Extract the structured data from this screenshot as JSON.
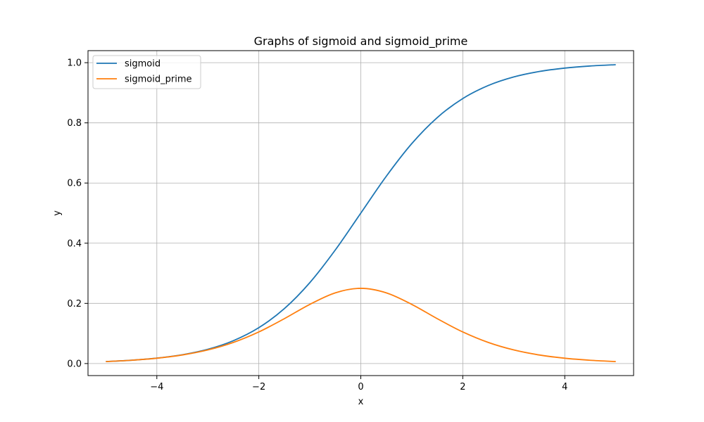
{
  "chart_data": {
    "type": "line",
    "title": "Graphs of sigmoid and sigmoid_prime",
    "xlabel": "x",
    "ylabel": "y",
    "xlim": [
      -5.35,
      5.35
    ],
    "ylim": [
      -0.04,
      1.04
    ],
    "xticks": [
      -4,
      -2,
      0,
      2,
      4
    ],
    "xtick_labels": [
      "−4",
      "−2",
      "0",
      "2",
      "4"
    ],
    "yticks": [
      0.0,
      0.2,
      0.4,
      0.6,
      0.8,
      1.0
    ],
    "ytick_labels": [
      "0.0",
      "0.2",
      "0.4",
      "0.6",
      "0.8",
      "1.0"
    ],
    "grid": true,
    "legend_position": "top-left",
    "x": [
      -5,
      -4.5,
      -4,
      -3.5,
      -3,
      -2.5,
      -2,
      -1.5,
      -1,
      -0.5,
      0,
      0.5,
      1,
      1.5,
      2,
      2.5,
      3,
      3.5,
      4,
      4.5,
      5
    ],
    "series": [
      {
        "name": "sigmoid",
        "color": "#1f77b4",
        "values": [
          0.0067,
          0.011,
          0.018,
          0.0293,
          0.0474,
          0.0759,
          0.1192,
          0.1824,
          0.2689,
          0.3775,
          0.5,
          0.6225,
          0.7311,
          0.8176,
          0.8808,
          0.9241,
          0.9526,
          0.9707,
          0.982,
          0.989,
          0.9933
        ]
      },
      {
        "name": "sigmoid_prime",
        "color": "#ff7f0e",
        "values": [
          0.0066,
          0.0109,
          0.0177,
          0.0285,
          0.0452,
          0.0701,
          0.105,
          0.1491,
          0.1966,
          0.235,
          0.25,
          0.235,
          0.1966,
          0.1491,
          0.105,
          0.0701,
          0.0452,
          0.0285,
          0.0177,
          0.0109,
          0.0066
        ]
      }
    ]
  }
}
